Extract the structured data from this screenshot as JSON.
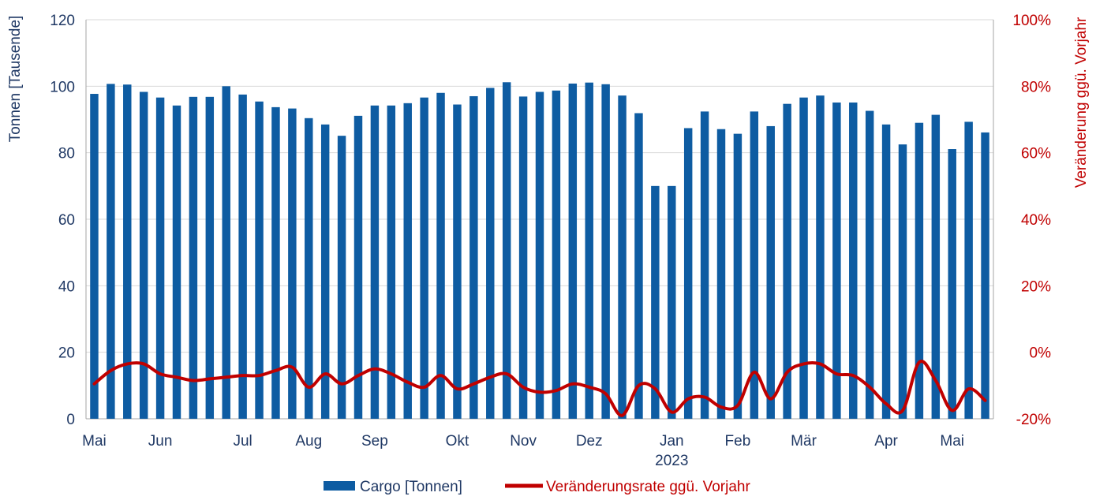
{
  "chart_data": {
    "type": "bar+line",
    "colors": {
      "bars": "#0e5ca2",
      "line": "#c00000",
      "grid": "#d9d9d9",
      "axis_text": "#1f3864"
    },
    "left_axis": {
      "label": "Tonnen [Tausende]",
      "range": [
        0,
        120
      ],
      "ticks": [
        "0",
        "20",
        "40",
        "60",
        "80",
        "100",
        "120"
      ],
      "tick_values": [
        0,
        20,
        40,
        60,
        80,
        100,
        120
      ]
    },
    "right_axis": {
      "label": "Veränderung ggü. Vorjahr",
      "range": [
        -20,
        100
      ],
      "ticks": [
        "-20%",
        "0%",
        "20%",
        "40%",
        "60%",
        "80%",
        "100%"
      ],
      "tick_values": [
        -20,
        0,
        20,
        40,
        60,
        80,
        100
      ]
    },
    "x_ticks": [
      {
        "label": "Mai",
        "index": 0
      },
      {
        "label": "Jun",
        "index": 4
      },
      {
        "label": "Jul",
        "index": 9
      },
      {
        "label": "Aug",
        "index": 13
      },
      {
        "label": "Sep",
        "index": 17
      },
      {
        "label": "Okt",
        "index": 22
      },
      {
        "label": "Nov",
        "index": 26
      },
      {
        "label": "Dez",
        "index": 30
      },
      {
        "label": "Jan",
        "index": 35
      },
      {
        "label": "Feb",
        "index": 39
      },
      {
        "label": "Mär",
        "index": 43
      },
      {
        "label": "Apr",
        "index": 48
      },
      {
        "label": "Mai",
        "index": 52
      }
    ],
    "year_label": {
      "label": "2023",
      "index": 35
    },
    "series": [
      {
        "name": "Cargo [Tonnen]",
        "type": "bar",
        "axis": "left",
        "values": [
          97.7,
          100.7,
          100.5,
          98.3,
          96.6,
          94.2,
          96.8,
          96.8,
          100.0,
          97.5,
          95.4,
          93.7,
          93.3,
          90.4,
          88.5,
          85.1,
          91.1,
          94.2,
          94.2,
          94.9,
          96.6,
          98.0,
          94.5,
          97.0,
          99.5,
          101.2,
          96.9,
          98.3,
          98.7,
          100.8,
          101.1,
          100.6,
          97.2,
          91.9,
          70.0,
          70.0,
          87.4,
          92.4,
          87.1,
          85.7,
          92.4,
          88.0,
          94.7,
          96.6,
          97.2,
          95.1,
          95.1,
          92.6,
          88.5,
          82.5,
          89.0,
          91.4,
          81.1,
          89.3,
          86.1
        ]
      },
      {
        "name": "Veränderungsrate ggü. Vorjahr",
        "type": "line",
        "axis": "right",
        "values": [
          -9.5,
          -5.5,
          -3.5,
          -3.5,
          -6.5,
          -7.5,
          -8.5,
          -8.0,
          -7.5,
          -7.0,
          -7.0,
          -5.5,
          -4.5,
          -10.5,
          -6.5,
          -9.5,
          -7.0,
          -5.0,
          -6.5,
          -9.0,
          -10.5,
          -7.0,
          -11.0,
          -9.5,
          -7.5,
          -6.5,
          -10.5,
          -12.0,
          -11.5,
          -9.5,
          -10.5,
          -12.5,
          -19.0,
          -10.0,
          -11.0,
          -18.0,
          -14.0,
          -13.5,
          -16.5,
          -16.0,
          -6.0,
          -14.0,
          -6.0,
          -3.5,
          -3.5,
          -6.5,
          -7.0,
          -10.5,
          -15.5,
          -17.5,
          -3.0,
          -8.5,
          -17.5,
          -11.0,
          -14.5
        ]
      }
    ],
    "legend_position": "bottom-center"
  }
}
